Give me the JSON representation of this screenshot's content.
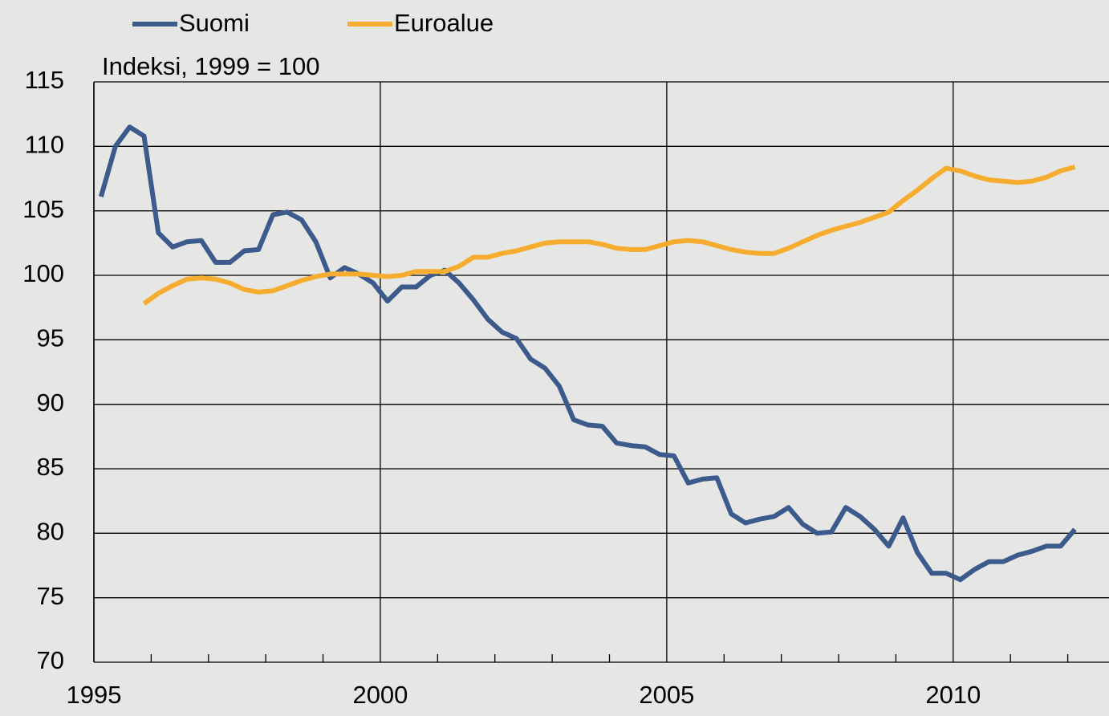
{
  "chart_data": {
    "type": "line",
    "annotation": "Indeksi, 1999 = 100",
    "x": [
      1995.125,
      1995.375,
      1995.625,
      1995.875,
      1996.125,
      1996.375,
      1996.625,
      1996.875,
      1997.125,
      1997.375,
      1997.625,
      1997.875,
      1998.125,
      1998.375,
      1998.625,
      1998.875,
      1999.125,
      1999.375,
      1999.625,
      1999.875,
      2000.125,
      2000.375,
      2000.625,
      2000.875,
      2001.125,
      2001.375,
      2001.625,
      2001.875,
      2002.125,
      2002.375,
      2002.625,
      2002.875,
      2003.125,
      2003.375,
      2003.625,
      2003.875,
      2004.125,
      2004.375,
      2004.625,
      2004.875,
      2005.125,
      2005.375,
      2005.625,
      2005.875,
      2006.125,
      2006.375,
      2006.625,
      2006.875,
      2007.125,
      2007.375,
      2007.625,
      2007.875,
      2008.125,
      2008.375,
      2008.625,
      2008.875,
      2009.125,
      2009.375,
      2009.625,
      2009.875,
      2010.125,
      2010.375,
      2010.625,
      2010.875,
      2011.125,
      2011.375,
      2011.625,
      2011.875,
      2012.125
    ],
    "series": [
      {
        "name": "Suomi",
        "color": "#3c5a8c",
        "values": [
          106.1,
          110,
          111.5,
          110.8,
          103.3,
          102.2,
          102.6,
          102.7,
          101.0,
          101.0,
          101.9,
          102.0,
          104.7,
          104.9,
          104.3,
          102.6,
          99.8,
          100.6,
          100.1,
          99.4,
          98.0,
          99.1,
          99.1,
          100.0,
          100.4,
          99.4,
          98.1,
          96.6,
          95.6,
          95.1,
          93.5,
          92.8,
          91.4,
          88.8,
          88.4,
          88.3,
          87.0,
          86.8,
          86.7,
          86.1,
          86.0,
          83.9,
          84.2,
          84.3,
          81.5,
          80.8,
          81.1,
          81.3,
          82.0,
          80.7,
          80.0,
          80.1,
          82.0,
          81.3,
          80.3,
          79.0,
          81.2,
          78.5,
          76.9,
          76.9,
          76.4,
          77.2,
          77.8,
          77.8,
          78.3,
          78.6,
          79.0,
          79.0,
          80.3
        ]
      },
      {
        "name": "Euroalue",
        "color": "#f5ac2f",
        "values": [
          null,
          null,
          null,
          97.8,
          98.6,
          99.2,
          99.7,
          99.8,
          99.7,
          99.4,
          98.9,
          98.7,
          98.8,
          99.2,
          99.6,
          99.9,
          100.1,
          100.1,
          100.1,
          100.0,
          99.9,
          100.0,
          100.3,
          100.3,
          100.3,
          100.7,
          101.4,
          101.4,
          101.7,
          101.9,
          102.2,
          102.5,
          102.6,
          102.6,
          102.6,
          102.4,
          102.1,
          102.0,
          102.0,
          102.3,
          102.6,
          102.7,
          102.6,
          102.3,
          102.0,
          101.8,
          101.7,
          101.7,
          102.1,
          102.6,
          103.1,
          103.5,
          103.8,
          104.1,
          104.5,
          104.9,
          105.8,
          106.6,
          107.5,
          108.3,
          108.1,
          107.7,
          107.4,
          107.3,
          107.2,
          107.3,
          107.6,
          108.1,
          108.4
        ]
      }
    ],
    "xlim": [
      1995,
      2012.72
    ],
    "xticks": [
      1995,
      2000,
      2005,
      2010
    ],
    "xminorticks": [
      1996,
      1997,
      1998,
      1999,
      2001,
      2002,
      2003,
      2004,
      2006,
      2007,
      2008,
      2009,
      2011,
      2012
    ],
    "ylim": [
      70,
      115
    ],
    "yticks": [
      70,
      75,
      80,
      85,
      90,
      95,
      100,
      105,
      110,
      115
    ],
    "grid": true,
    "legend": "top"
  }
}
